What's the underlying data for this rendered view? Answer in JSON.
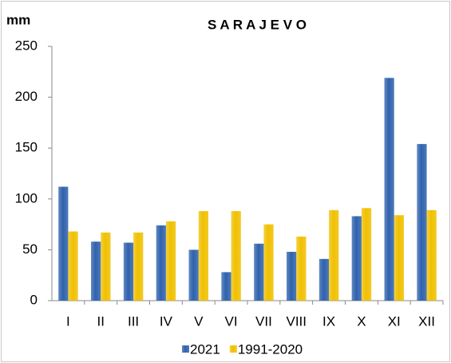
{
  "chart_data": {
    "type": "bar",
    "title": "S A R A J E V O",
    "y_label": "mm",
    "categories": [
      "I",
      "II",
      "III",
      "IV",
      "V",
      "VI",
      "VII",
      "VIII",
      "IX",
      "X",
      "XI",
      "XII"
    ],
    "series": [
      {
        "name": "2021",
        "color": "#2f62ad",
        "values": [
          112,
          58,
          57,
          74,
          50,
          28,
          56,
          48,
          41,
          83,
          219,
          154
        ]
      },
      {
        "name": "1991-2020",
        "color": "#f0c000",
        "values": [
          68,
          67,
          67,
          78,
          88,
          88,
          75,
          63,
          89,
          91,
          84,
          89
        ]
      }
    ],
    "ylim": [
      0,
      250
    ],
    "yticks": [
      0,
      50,
      100,
      150,
      200,
      250
    ],
    "grid": false
  }
}
